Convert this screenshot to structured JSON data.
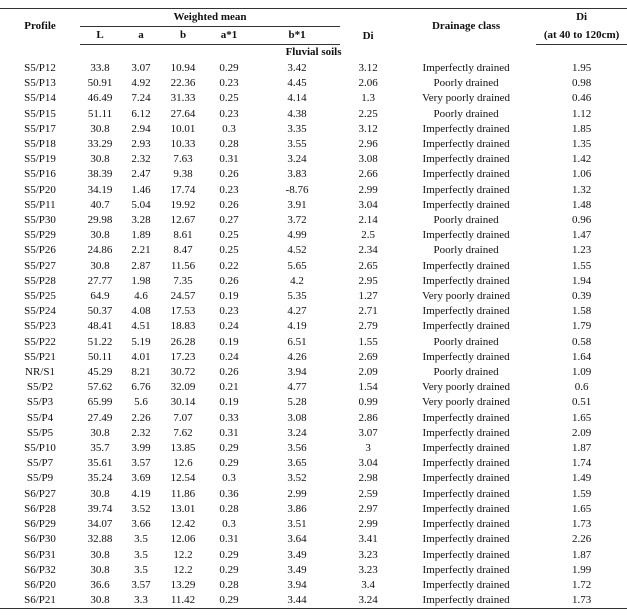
{
  "table": {
    "header": {
      "profile": "Profile",
      "weighted_mean": "Weighted mean",
      "columns": [
        "L",
        "a",
        "b",
        "a*1",
        "b*1"
      ],
      "di": "Di",
      "drainage": "Drainage class",
      "di_depth": [
        "Di",
        "(at 40 to 120cm)"
      ]
    },
    "section": "Fluvial soils",
    "rows": [
      [
        "S5/P12",
        "33.8",
        "3.07",
        "10.94",
        "0.29",
        "3.42",
        "3.12",
        "Imperfectly drained",
        "1.95"
      ],
      [
        "S5/P13",
        "50.91",
        "4.92",
        "22.36",
        "0.23",
        "4.45",
        "2.06",
        "Poorly drained",
        "0.98"
      ],
      [
        "S5/P14",
        "46.49",
        "7.24",
        "31.33",
        "0.25",
        "4.14",
        "1.3",
        "Very poorly drained",
        "0.46"
      ],
      [
        "S5/P15",
        "51.11",
        "6.12",
        "27.64",
        "0.23",
        "4.38",
        "2.25",
        "Poorly drained",
        "1.12"
      ],
      [
        "S5/P17",
        "30.8",
        "2.94",
        "10.01",
        "0.3",
        "3.35",
        "3.12",
        "Imperfectly drained",
        "1.85"
      ],
      [
        "S5/P18",
        "33.29",
        "2.93",
        "10.33",
        "0.28",
        "3.55",
        "2.96",
        "Imperfectly drained",
        "1.35"
      ],
      [
        "S5/P19",
        "30.8",
        "2.32",
        "7.63",
        "0.31",
        "3.24",
        "3.08",
        "Imperfectly drained",
        "1.42"
      ],
      [
        "S5/P16",
        "38.39",
        "2.47",
        "9.38",
        "0.26",
        "3.83",
        "2.66",
        "Imperfectly drained",
        "1.06"
      ],
      [
        "S5/P20",
        "34.19",
        "1.46",
        "17.74",
        "0.23",
        "-8.76",
        "2.99",
        "Imperfectly drained",
        "1.32"
      ],
      [
        "S5/P11",
        "40.7",
        "5.04",
        "19.92",
        "0.26",
        "3.91",
        "3.04",
        "Imperfectly drained",
        "1.48"
      ],
      [
        "S5/P30",
        "29.98",
        "3.28",
        "12.67",
        "0.27",
        "3.72",
        "2.14",
        "Poorly drained",
        "0.96"
      ],
      [
        "S5/P29",
        "30.8",
        "1.89",
        "8.61",
        "0.25",
        "4.99",
        "2.5",
        "Imperfectly drained",
        "1.47"
      ],
      [
        "S5/P26",
        "24.86",
        "2.21",
        "8.47",
        "0.25",
        "4.52",
        "2.34",
        "Poorly drained",
        "1.23"
      ],
      [
        "S5/P27",
        "30.8",
        "2.87",
        "11.56",
        "0.22",
        "5.65",
        "2.65",
        "Imperfectly drained",
        "1.55"
      ],
      [
        "S5/P28",
        "27.77",
        "1.98",
        "7.35",
        "0.26",
        "4.2",
        "2.95",
        "Imperfectly drained",
        "1.94"
      ],
      [
        "S5/P25",
        "64.9",
        "4.6",
        "24.57",
        "0.19",
        "5.35",
        "1.27",
        "Very poorly drained",
        "0.39"
      ],
      [
        "S5/P24",
        "50.37",
        "4.08",
        "17.53",
        "0.23",
        "4.27",
        "2.71",
        "Imperfectly drained",
        "1.58"
      ],
      [
        "S5/P23",
        "48.41",
        "4.51",
        "18.83",
        "0.24",
        "4.19",
        "2.79",
        "Imperfectly drained",
        "1.79"
      ],
      [
        "S5/P22",
        "51.22",
        "5.19",
        "26.28",
        "0.19",
        "6.51",
        "1.55",
        "Poorly drained",
        "0.58"
      ],
      [
        "S5/P21",
        "50.11",
        "4.01",
        "17.23",
        "0.24",
        "4.26",
        "2.69",
        "Imperfectly drained",
        "1.64"
      ],
      [
        "NR/S1",
        "45.29",
        "8.21",
        "30.72",
        "0.26",
        "3.94",
        "2.09",
        "Poorly drained",
        "1.09"
      ],
      [
        "S5/P2",
        "57.62",
        "6.76",
        "32.09",
        "0.21",
        "4.77",
        "1.54",
        "Very poorly drained",
        "0.6"
      ],
      [
        "S5/P3",
        "65.99",
        "5.6",
        "30.14",
        "0.19",
        "5.28",
        "0.99",
        "Very poorly drained",
        "0.51"
      ],
      [
        "S5/P4",
        "27.49",
        "2.26",
        "7.07",
        "0.33",
        "3.08",
        "2.86",
        "Imperfectly drained",
        "1.65"
      ],
      [
        "S5/P5",
        "30.8",
        "2.32",
        "7.62",
        "0.31",
        "3.24",
        "3.07",
        "Imperfectly drained",
        "2.09"
      ],
      [
        "S5/P10",
        "35.7",
        "3.99",
        "13.85",
        "0.29",
        "3.56",
        "3",
        "Imperfectly drained",
        "1.87"
      ],
      [
        "S5/P7",
        "35.61",
        "3.57",
        "12.6",
        "0.29",
        "3.65",
        "3.04",
        "Imperfectly drained",
        "1.74"
      ],
      [
        "S5/P9",
        "35.24",
        "3.69",
        "12.54",
        "0.3",
        "3.52",
        "2.98",
        "Imperfectly drained",
        "1.49"
      ],
      [
        "S6/P27",
        "30.8",
        "4.19",
        "11.86",
        "0.36",
        "2.99",
        "2.59",
        "Imperfectly drained",
        "1.59"
      ],
      [
        "S6/P28",
        "39.74",
        "3.52",
        "13.01",
        "0.28",
        "3.86",
        "2.97",
        "Imperfectly drained",
        "1.65"
      ],
      [
        "S6/P29",
        "34.07",
        "3.66",
        "12.42",
        "0.3",
        "3.51",
        "2.99",
        "Imperfectly drained",
        "1.73"
      ],
      [
        "S6/P30",
        "32.88",
        "3.5",
        "12.06",
        "0.31",
        "3.64",
        "3.41",
        "Imperfectly drained",
        "2.26"
      ],
      [
        "S6/P31",
        "30.8",
        "3.5",
        "12.2",
        "0.29",
        "3.49",
        "3.23",
        "Imperfectly drained",
        "1.87"
      ],
      [
        "S6/P32",
        "30.8",
        "3.5",
        "12.2",
        "0.29",
        "3.49",
        "3.23",
        "Imperfectly drained",
        "1.99"
      ],
      [
        "S6/P20",
        "36.6",
        "3.57",
        "13.29",
        "0.28",
        "3.94",
        "3.4",
        "Imperfectly drained",
        "1.72"
      ],
      [
        "S6/P21",
        "30.8",
        "3.3",
        "11.42",
        "0.29",
        "3.44",
        "3.24",
        "Imperfectly drained",
        "1.73"
      ]
    ]
  }
}
